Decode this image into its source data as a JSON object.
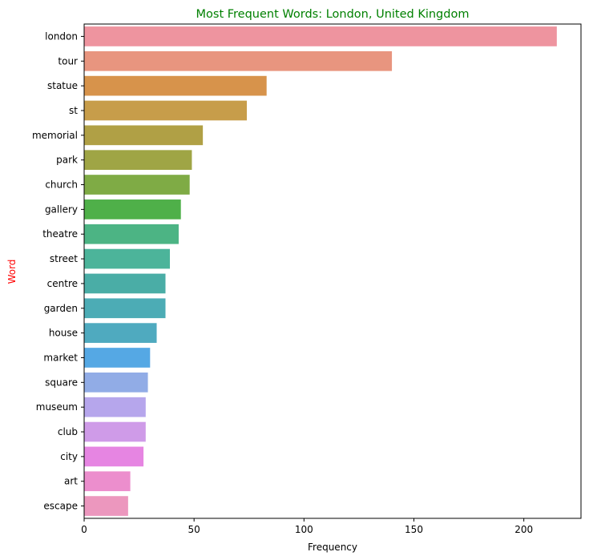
{
  "chart_data": {
    "type": "bar",
    "orientation": "horizontal",
    "title": "Most Frequent Words: London, United Kingdom",
    "title_color": "#008000",
    "xlabel": "Frequency",
    "ylabel": "Word",
    "ylabel_color": "#ff0000",
    "xlim": [
      0,
      226
    ],
    "xticks": [
      0,
      50,
      100,
      150,
      200
    ],
    "grid": false,
    "categories": [
      "london",
      "tour",
      "statue",
      "st",
      "memorial",
      "park",
      "church",
      "gallery",
      "theatre",
      "street",
      "centre",
      "garden",
      "house",
      "market",
      "square",
      "museum",
      "club",
      "city",
      "art",
      "escape"
    ],
    "values": [
      215,
      140,
      83,
      74,
      54,
      49,
      48,
      44,
      43,
      39,
      37,
      37,
      33,
      30,
      29,
      28,
      28,
      27,
      21,
      20
    ],
    "colors": [
      "#ee949f",
      "#e8957f",
      "#d7934b",
      "#c79d4a",
      "#b0a045",
      "#9fa545",
      "#7fab45",
      "#4fb049",
      "#4cb484",
      "#4cb49a",
      "#4aada6",
      "#4cacb5",
      "#4faabf",
      "#55a8e4",
      "#91ace6",
      "#b6a6ec",
      "#cf9be8",
      "#e685e2",
      "#ec8ecd",
      "#ec97be"
    ]
  }
}
